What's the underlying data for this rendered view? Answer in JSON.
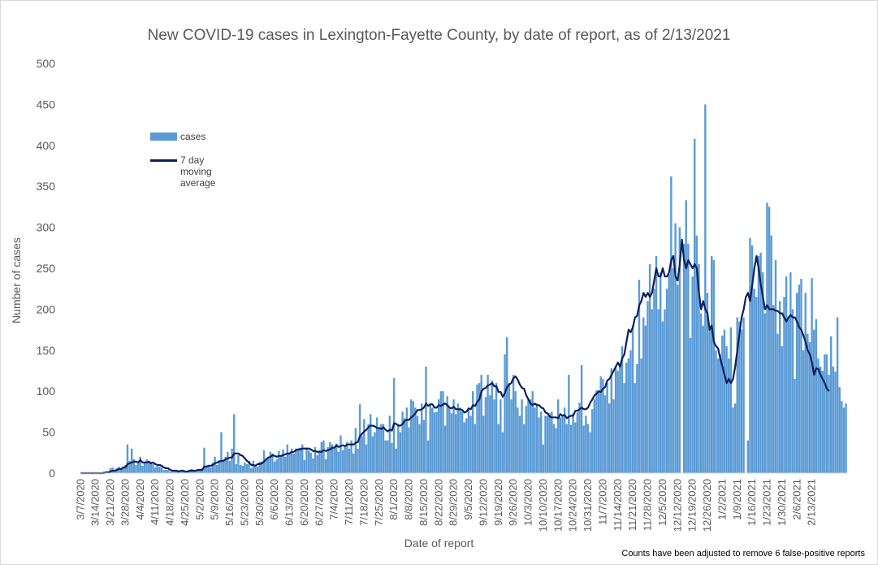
{
  "chart_data": {
    "type": "bar",
    "title": "New COVID-19 cases in Lexington-Fayette County, by date of report, as of 2/13/2021",
    "xlabel": "Date of report",
    "ylabel": "Number of cases",
    "note": "Counts have been adjusted to remove 6 false-positive reports",
    "ylim": [
      0,
      500
    ],
    "yticks": [
      0,
      50,
      100,
      150,
      200,
      250,
      300,
      350,
      400,
      450,
      500
    ],
    "xrange": [
      "3/7/2020",
      "2/13/2021"
    ],
    "xtick_labels": [
      "3/7/2020",
      "3/14/2020",
      "3/21/2020",
      "3/28/2020",
      "4/4/2020",
      "4/11/2020",
      "4/18/2020",
      "4/25/2020",
      "5/2/2020",
      "5/9/2020",
      "5/16/2020",
      "5/23/2020",
      "5/30/2020",
      "6/6/2020",
      "6/13/2020",
      "6/20/2020",
      "6/27/2020",
      "7/4/2020",
      "7/11/2020",
      "7/18/2020",
      "7/25/2020",
      "8/1/2020",
      "8/8/2020",
      "8/15/2020",
      "8/22/2020",
      "8/29/2020",
      "9/5/2020",
      "9/12/2020",
      "9/19/2020",
      "9/26/2020",
      "10/3/2020",
      "10/10/2020",
      "10/17/2020",
      "10/24/2020",
      "10/31/2020",
      "11/7/2020",
      "11/14/2020",
      "11/21/2020",
      "11/28/2020",
      "12/5/2020",
      "12/12/2020",
      "12/19/2020",
      "12/26/2020",
      "1/2/2021",
      "1/9/2021",
      "1/16/2021",
      "1/23/2021",
      "1/30/2021",
      "2/6/2021",
      "2/13/2021"
    ],
    "grid": false,
    "legend_position": "upper-left",
    "colors": {
      "cases": "#5b9bd5",
      "moving_average": "#0d1f5c"
    },
    "series": [
      {
        "name": "cases",
        "type": "bar",
        "start_date": "3/7/2020",
        "values": [
          0,
          0,
          0,
          0,
          0,
          0,
          0,
          0,
          0,
          0,
          0,
          2,
          2,
          2,
          6,
          7,
          4,
          6,
          8,
          6,
          8,
          10,
          35,
          15,
          30,
          17,
          10,
          13,
          20,
          9,
          13,
          17,
          14,
          14,
          11,
          7,
          10,
          8,
          7,
          4,
          4,
          4,
          2,
          2,
          2,
          3,
          2,
          3,
          2,
          2,
          3,
          3,
          5,
          3,
          3,
          4,
          3,
          4,
          31,
          8,
          10,
          7,
          13,
          20,
          10,
          16,
          50,
          14,
          20,
          26,
          15,
          30,
          72,
          11,
          22,
          10,
          9,
          13,
          11,
          15,
          6,
          15,
          10,
          8,
          14,
          14,
          28,
          16,
          20,
          26,
          24,
          14,
          17,
          27,
          21,
          29,
          20,
          35,
          24,
          30,
          24,
          30,
          28,
          31,
          35,
          16,
          30,
          28,
          25,
          18,
          32,
          22,
          28,
          38,
          40,
          17,
          32,
          38,
          35,
          30,
          36,
          26,
          46,
          28,
          34,
          38,
          30,
          40,
          24,
          55,
          30,
          84,
          45,
          66,
          35,
          60,
          72,
          45,
          50,
          68,
          55,
          60,
          60,
          40,
          40,
          70,
          37,
          116,
          30,
          60,
          50,
          75,
          67,
          80,
          56,
          90,
          88,
          80,
          70,
          60,
          85,
          65,
          130,
          40,
          85,
          80,
          74,
          75,
          90,
          100,
          100,
          58,
          94,
          80,
          73,
          90,
          72,
          85,
          80,
          75,
          62,
          67,
          80,
          70,
          100,
          60,
          108,
          110,
          120,
          70,
          93,
          120,
          95,
          113,
          90,
          110,
          60,
          90,
          50,
          145,
          166,
          110,
          90,
          120,
          100,
          80,
          70,
          90,
          60,
          82,
          90,
          90,
          100,
          80,
          85,
          68,
          75,
          35,
          70,
          70,
          73,
          75,
          60,
          55,
          90,
          68,
          70,
          80,
          60,
          120,
          59,
          73,
          62,
          74,
          86,
          132,
          58,
          70,
          60,
          50,
          78,
          90,
          101,
          100,
          118,
          115,
          95,
          110,
          85,
          128,
          90,
          130,
          125,
          132,
          155,
          110,
          135,
          140,
          150,
          180,
          110,
          133,
          236,
          140,
          190,
          180,
          210,
          255,
          200,
          225,
          265,
          200,
          245,
          185,
          200,
          225,
          243,
          362,
          250,
          305,
          230,
          300,
          0,
          280,
          333,
          280,
          165,
          240,
          408,
          290,
          255,
          195,
          180,
          450,
          220,
          180,
          265,
          260,
          150,
          140,
          145,
          168,
          175,
          155,
          140,
          178,
          80,
          85,
          190,
          185,
          175,
          190,
          0,
          40,
          287,
          278,
          225,
          215,
          265,
          269,
          245,
          195,
          330,
          325,
          290,
          205,
          260,
          170,
          210,
          155,
          215,
          240,
          190,
          245,
          200,
          115,
          220,
          230,
          237,
          150,
          220,
          170,
          160,
          238,
          175,
          188,
          140,
          130,
          125,
          145,
          145,
          120,
          167,
          130,
          124,
          190,
          105,
          88,
          80,
          85
        ]
      },
      {
        "name": "7 day moving average",
        "type": "line",
        "start_date": "3/7/2020",
        "values": [
          0,
          0,
          0,
          0,
          0,
          0,
          0,
          0,
          0,
          0,
          0,
          0,
          1,
          1,
          2,
          3,
          3,
          4,
          5,
          5,
          7,
          7,
          11,
          12,
          13,
          14,
          14,
          13,
          16,
          13,
          13,
          13,
          14,
          12,
          13,
          11,
          10,
          10,
          9,
          7,
          6,
          6,
          4,
          3,
          3,
          3,
          2,
          3,
          3,
          2,
          2,
          3,
          3,
          3,
          3,
          4,
          4,
          4,
          8,
          8,
          9,
          9,
          10,
          12,
          13,
          14,
          15,
          15,
          17,
          18,
          19,
          19,
          24,
          24,
          24,
          22,
          21,
          18,
          15,
          13,
          10,
          10,
          9,
          11,
          11,
          12,
          14,
          17,
          19,
          20,
          22,
          21,
          20,
          21,
          21,
          22,
          23,
          24,
          24,
          26,
          26,
          28,
          29,
          29,
          30,
          30,
          30,
          30,
          29,
          27,
          27,
          26,
          26,
          26,
          28,
          27,
          28,
          29,
          31,
          31,
          34,
          32,
          33,
          34,
          33,
          35,
          35,
          35,
          35,
          37,
          38,
          45,
          48,
          51,
          53,
          56,
          58,
          58,
          57,
          55,
          55,
          54,
          56,
          53,
          51,
          53,
          52,
          61,
          60,
          58,
          58,
          60,
          64,
          65,
          65,
          68,
          70,
          73,
          77,
          77,
          78,
          80,
          85,
          82,
          84,
          84,
          80,
          80,
          83,
          82,
          84,
          85,
          83,
          80,
          79,
          81,
          78,
          78,
          78,
          77,
          74,
          75,
          79,
          78,
          83,
          82,
          87,
          90,
          100,
          103,
          104,
          107,
          108,
          110,
          106,
          106,
          99,
          99,
          93,
          98,
          105,
          108,
          110,
          116,
          118,
          114,
          108,
          104,
          103,
          95,
          90,
          85,
          83,
          85,
          83,
          83,
          80,
          79,
          74,
          73,
          69,
          68,
          68,
          68,
          67,
          72,
          70,
          71,
          67,
          69,
          70,
          70,
          76,
          76,
          78,
          80,
          78,
          78,
          80,
          86,
          90,
          95,
          97,
          100,
          99,
          103,
          105,
          113,
          115,
          120,
          125,
          130,
          135,
          130,
          140,
          145,
          160,
          175,
          172,
          178,
          190,
          192,
          205,
          210,
          220,
          215,
          220,
          215,
          220,
          235,
          250,
          240,
          240,
          250,
          240,
          240,
          245,
          260,
          265,
          240,
          235,
          255,
          285,
          260,
          250,
          260,
          255,
          250,
          255,
          250,
          220,
          200,
          210,
          200,
          195,
          175,
          180,
          160,
          155,
          152,
          140,
          130,
          120,
          110,
          115,
          110,
          115,
          130,
          150,
          170,
          190,
          200,
          215,
          220,
          210,
          230,
          250,
          265,
          250,
          230,
          215,
          200,
          205,
          200,
          200,
          200,
          198,
          198,
          195,
          195,
          190,
          185,
          190,
          193,
          190,
          190,
          185,
          178,
          175,
          168,
          160,
          150,
          145,
          135,
          120,
          128,
          127,
          120,
          115,
          110,
          103,
          100
        ]
      }
    ]
  }
}
